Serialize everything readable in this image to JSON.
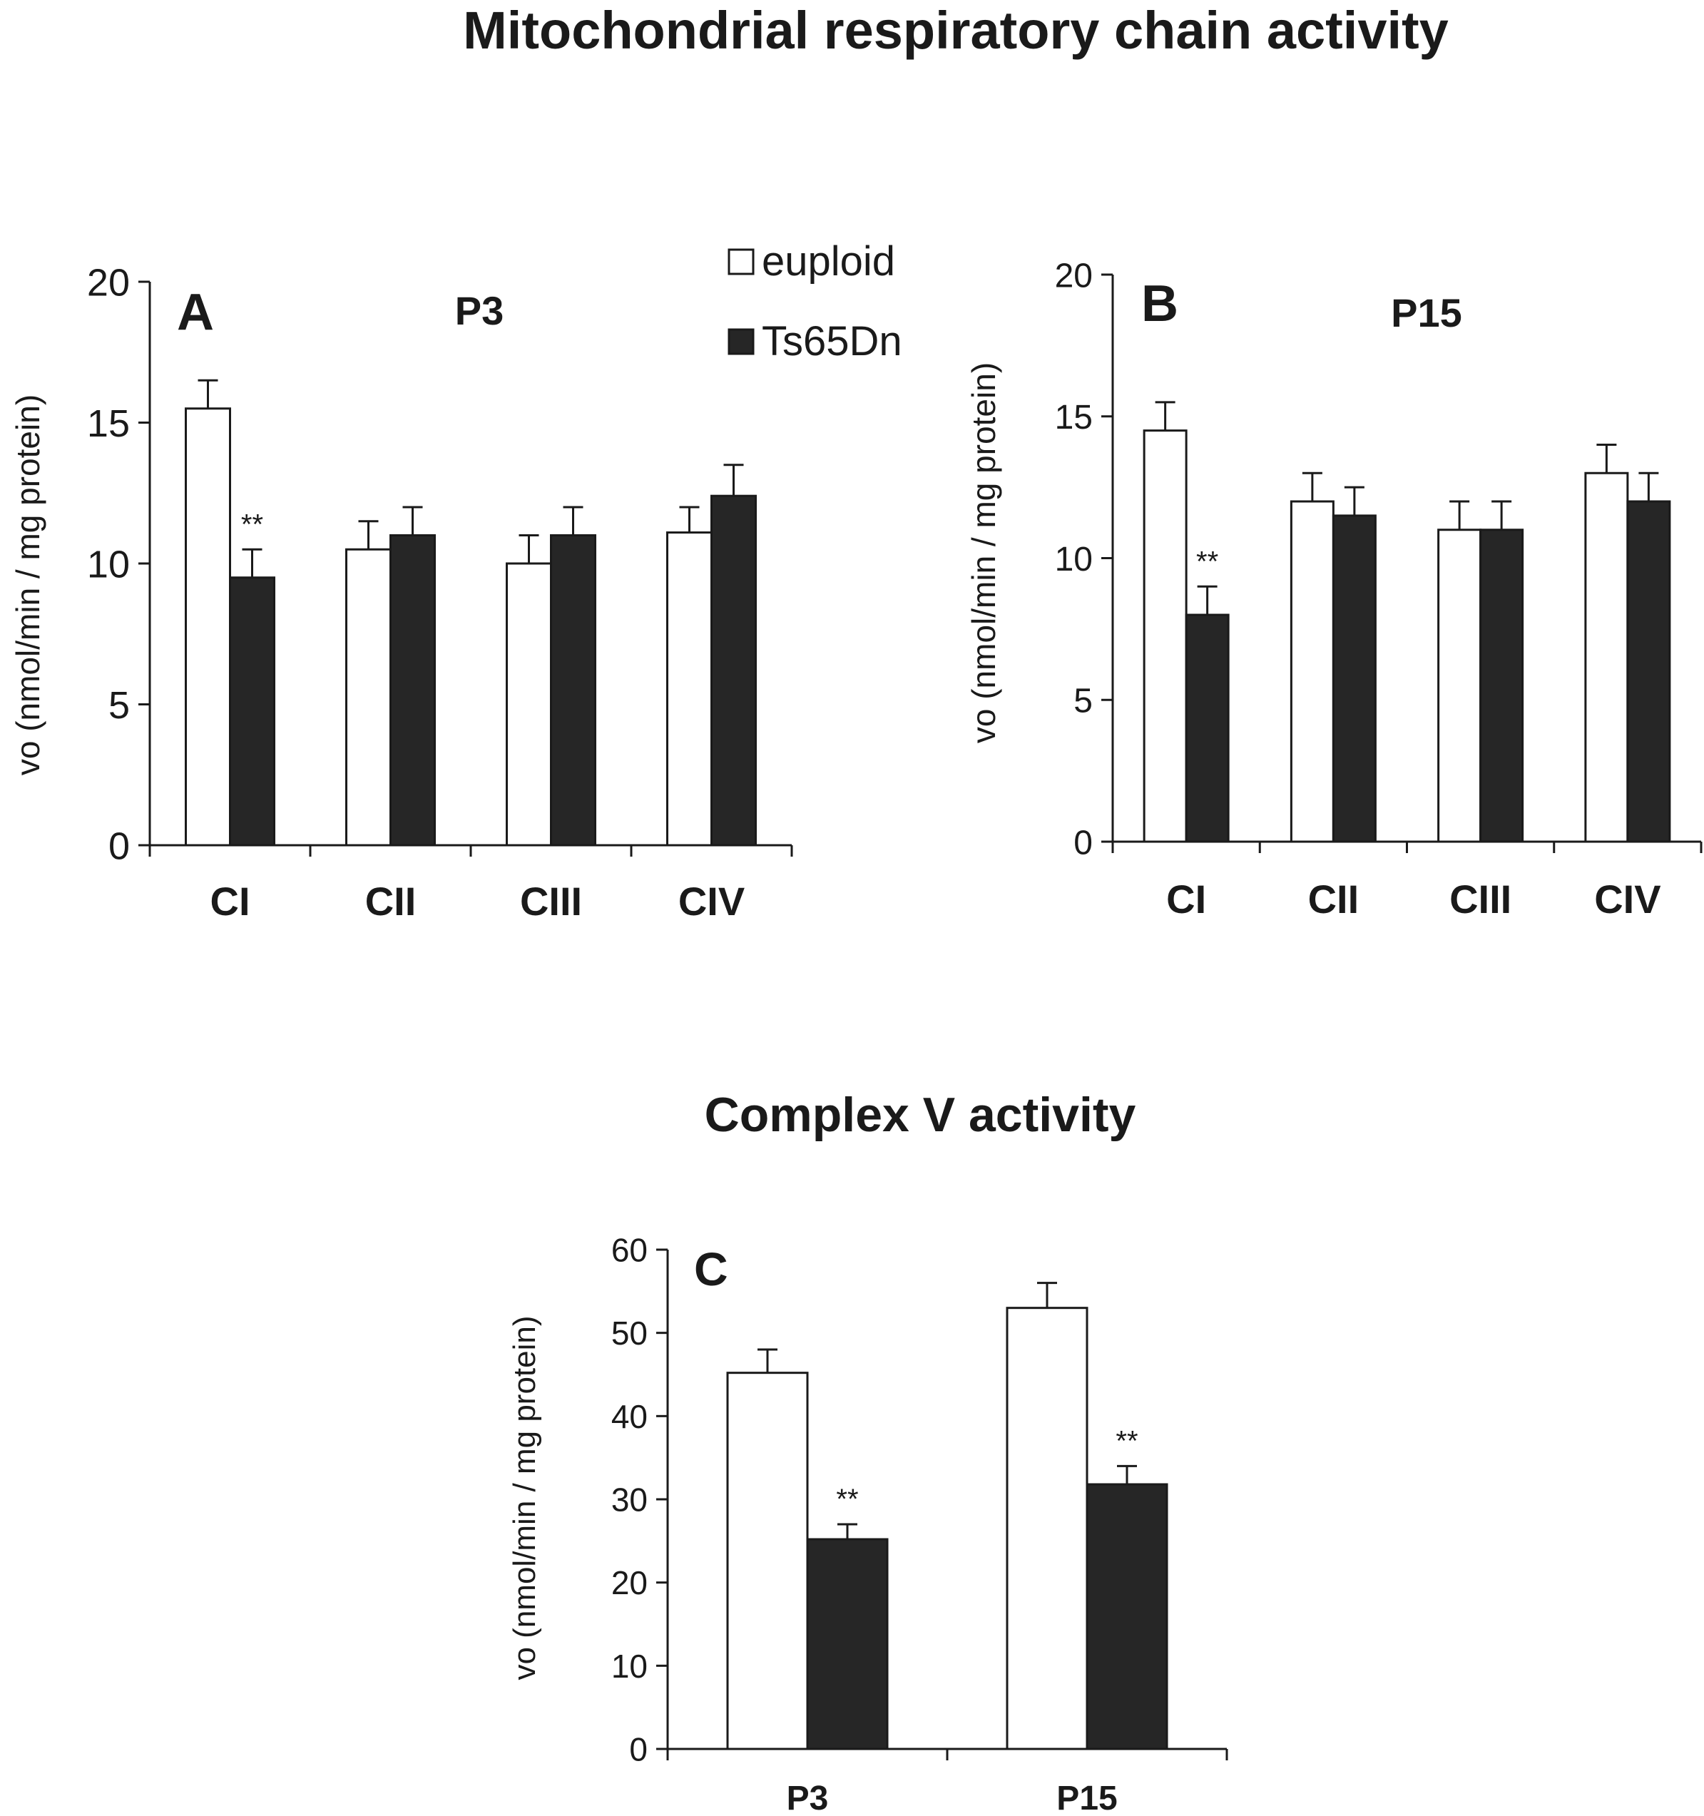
{
  "figure": {
    "title_top": "Mitochondrial respiratory chain activity",
    "title_bottom": "Complex V activity"
  },
  "legend": {
    "items": [
      {
        "label": "euploid",
        "color": "#ffffff"
      },
      {
        "label": "Ts65Dn",
        "color": "#262626"
      }
    ]
  },
  "colors": {
    "euploid": "#ffffff",
    "ts65dn": "#262626",
    "axis": "#1a1a1a"
  },
  "chart_data": [
    {
      "id": "A",
      "type": "bar",
      "panel_letter": "A",
      "title": "P3",
      "ylabel": "vo (nmol/min / mg protein)",
      "xlabel": "",
      "ylim": [
        0,
        20
      ],
      "yticks": [
        0,
        5,
        10,
        15,
        20
      ],
      "categories": [
        "CI",
        "CII",
        "CIII",
        "CIV"
      ],
      "series": [
        {
          "name": "euploid",
          "values": [
            15.5,
            10.5,
            10.0,
            11.1
          ],
          "errors": [
            1.0,
            1.0,
            1.0,
            0.9
          ]
        },
        {
          "name": "Ts65Dn",
          "values": [
            9.5,
            11.0,
            11.0,
            12.4
          ],
          "errors": [
            1.0,
            1.0,
            1.0,
            1.1
          ]
        }
      ],
      "annotations": [
        {
          "category": "CI",
          "series": "Ts65Dn",
          "text": "**"
        }
      ]
    },
    {
      "id": "B",
      "type": "bar",
      "panel_letter": "B",
      "title": "P15",
      "ylabel": "vo (nmol/min / mg protein)",
      "xlabel": "",
      "ylim": [
        0,
        20
      ],
      "yticks": [
        0,
        5,
        10,
        15,
        20
      ],
      "categories": [
        "CI",
        "CII",
        "CIII",
        "CIV"
      ],
      "series": [
        {
          "name": "euploid",
          "values": [
            14.5,
            12.0,
            11.0,
            13.0
          ],
          "errors": [
            1.0,
            1.0,
            1.0,
            1.0
          ]
        },
        {
          "name": "Ts65Dn",
          "values": [
            8.0,
            11.5,
            11.0,
            12.0
          ],
          "errors": [
            1.0,
            1.0,
            1.0,
            1.0
          ]
        }
      ],
      "annotations": [
        {
          "category": "CI",
          "series": "Ts65Dn",
          "text": "**"
        }
      ]
    },
    {
      "id": "C",
      "type": "bar",
      "panel_letter": "C",
      "title": "",
      "ylabel": "vo (nmol/min / mg protein)",
      "xlabel": "",
      "ylim": [
        0,
        60
      ],
      "yticks": [
        0,
        10,
        20,
        30,
        40,
        50,
        60
      ],
      "categories": [
        "P3",
        "P15"
      ],
      "series": [
        {
          "name": "euploid",
          "values": [
            45.2,
            53.0
          ],
          "errors": [
            2.8,
            3.0
          ]
        },
        {
          "name": "Ts65Dn",
          "values": [
            25.2,
            31.8
          ],
          "errors": [
            1.8,
            2.2
          ]
        }
      ],
      "annotations": [
        {
          "category": "P3",
          "series": "Ts65Dn",
          "text": "**"
        },
        {
          "category": "P15",
          "series": "Ts65Dn",
          "text": "**"
        }
      ]
    }
  ]
}
